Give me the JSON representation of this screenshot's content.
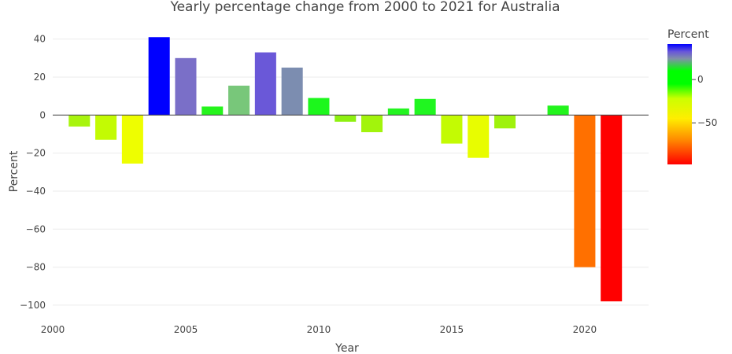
{
  "chart_data": {
    "type": "bar",
    "title": "Yearly percentage change from 2000 to 2021 for Australia",
    "xlabel": "Year",
    "ylabel": "Percent",
    "xlim": [
      2000,
      2022.4
    ],
    "ylim": [
      -105,
      44
    ],
    "xticks": [
      2000,
      2005,
      2010,
      2015,
      2020
    ],
    "yticks": [
      40,
      20,
      0,
      -20,
      -40,
      -60,
      -80,
      -100
    ],
    "x": [
      2001,
      2002,
      2003,
      2004,
      2005,
      2006,
      2007,
      2008,
      2009,
      2010,
      2011,
      2012,
      2013,
      2014,
      2015,
      2016,
      2017,
      2018,
      2019,
      2020,
      2021
    ],
    "values": [
      -6,
      -13,
      -25.5,
      41,
      30,
      4.5,
      15.5,
      33,
      25,
      9,
      -3.5,
      -9,
      3.5,
      8.5,
      -15,
      -22.5,
      -7,
      0,
      5,
      -80,
      -98
    ],
    "colors": [
      "#a8f40e",
      "#c3fb03",
      "#eefe00",
      "#0000ff",
      "#7a6fc8",
      "#25f41c",
      "#78c77a",
      "#6a58d8",
      "#7c8db0",
      "#1cf71c",
      "#8ef010",
      "#a2f40c",
      "#23f420",
      "#20f620",
      "#c3fb03",
      "#e8fd00",
      "#9ff20c",
      "#50f018",
      "#22f41c",
      "#ff7000",
      "#ff0000"
    ],
    "grid": true,
    "colorbar": {
      "title": "Percent",
      "ticks": [
        0,
        -50
      ],
      "range": [
        -98,
        41
      ],
      "stops": [
        {
          "value": 41,
          "color": "#0000ff"
        },
        {
          "value": 32,
          "color": "#6a58d8"
        },
        {
          "value": 24,
          "color": "#8090a8"
        },
        {
          "value": 10,
          "color": "#00ff00"
        },
        {
          "value": -5,
          "color": "#00ff00"
        },
        {
          "value": -22,
          "color": "#ccff00"
        },
        {
          "value": -45,
          "color": "#ffee00"
        },
        {
          "value": -70,
          "color": "#ff8800"
        },
        {
          "value": -98,
          "color": "#ff0000"
        }
      ]
    }
  }
}
